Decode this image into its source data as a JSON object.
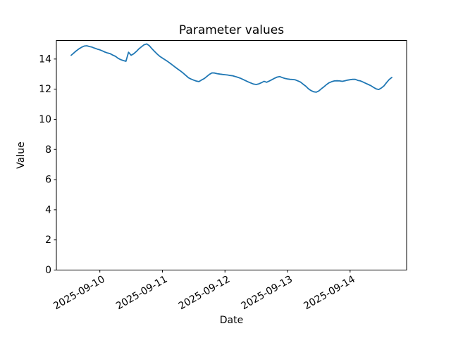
{
  "figure": {
    "title": "Parameter values",
    "xlabel": "Date",
    "ylabel": "Value"
  },
  "chart_data": {
    "type": "line",
    "title": "Parameter values",
    "xlabel": "Date",
    "ylabel": "Value",
    "grid": false,
    "legend": null,
    "line_color": "#1f77b4",
    "x_axis": {
      "tick_labels": [
        "2025-09-10",
        "2025-09-11",
        "2025-09-12",
        "2025-09-13",
        "2025-09-14"
      ],
      "tick_hour_offsets": [
        11,
        35,
        59,
        83,
        107
      ],
      "step_hours": 1,
      "label_rotation_deg": 30
    },
    "y_axis": {
      "ticks": [
        0,
        2,
        4,
        6,
        8,
        10,
        12,
        14
      ],
      "range": [
        0,
        15.23
      ]
    },
    "series": [
      {
        "name": "Parameter",
        "values": [
          14.25,
          14.4,
          14.55,
          14.68,
          14.78,
          14.86,
          14.88,
          14.83,
          14.79,
          14.72,
          14.66,
          14.61,
          14.54,
          14.46,
          14.4,
          14.35,
          14.26,
          14.18,
          14.05,
          13.96,
          13.9,
          13.85,
          14.45,
          14.25,
          14.35,
          14.5,
          14.68,
          14.82,
          14.95,
          15.0,
          14.88,
          14.68,
          14.5,
          14.33,
          14.18,
          14.06,
          13.95,
          13.84,
          13.71,
          13.58,
          13.45,
          13.32,
          13.2,
          13.06,
          12.91,
          12.76,
          12.67,
          12.6,
          12.54,
          12.5,
          12.61,
          12.7,
          12.84,
          12.98,
          13.08,
          13.07,
          13.03,
          13.0,
          12.98,
          12.96,
          12.94,
          12.91,
          12.89,
          12.84,
          12.78,
          12.72,
          12.64,
          12.56,
          12.48,
          12.41,
          12.34,
          12.31,
          12.35,
          12.43,
          12.52,
          12.46,
          12.54,
          12.63,
          12.72,
          12.8,
          12.84,
          12.77,
          12.71,
          12.68,
          12.65,
          12.64,
          12.62,
          12.55,
          12.47,
          12.33,
          12.2,
          12.03,
          11.91,
          11.83,
          11.8,
          11.88,
          12.03,
          12.16,
          12.31,
          12.43,
          12.5,
          12.55,
          12.56,
          12.55,
          12.52,
          12.56,
          12.6,
          12.63,
          12.65,
          12.65,
          12.58,
          12.55,
          12.47,
          12.39,
          12.31,
          12.23,
          12.12,
          12.02,
          11.98,
          12.08,
          12.22,
          12.44,
          12.64,
          12.78
        ]
      }
    ]
  }
}
